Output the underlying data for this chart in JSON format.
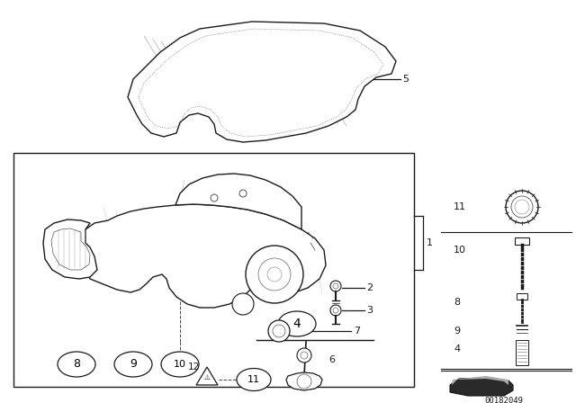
{
  "bg_color": "#ffffff",
  "part_number": "00182049",
  "line_color": "#1a1a1a",
  "gray_color": "#888888",
  "light_gray": "#cccccc"
}
